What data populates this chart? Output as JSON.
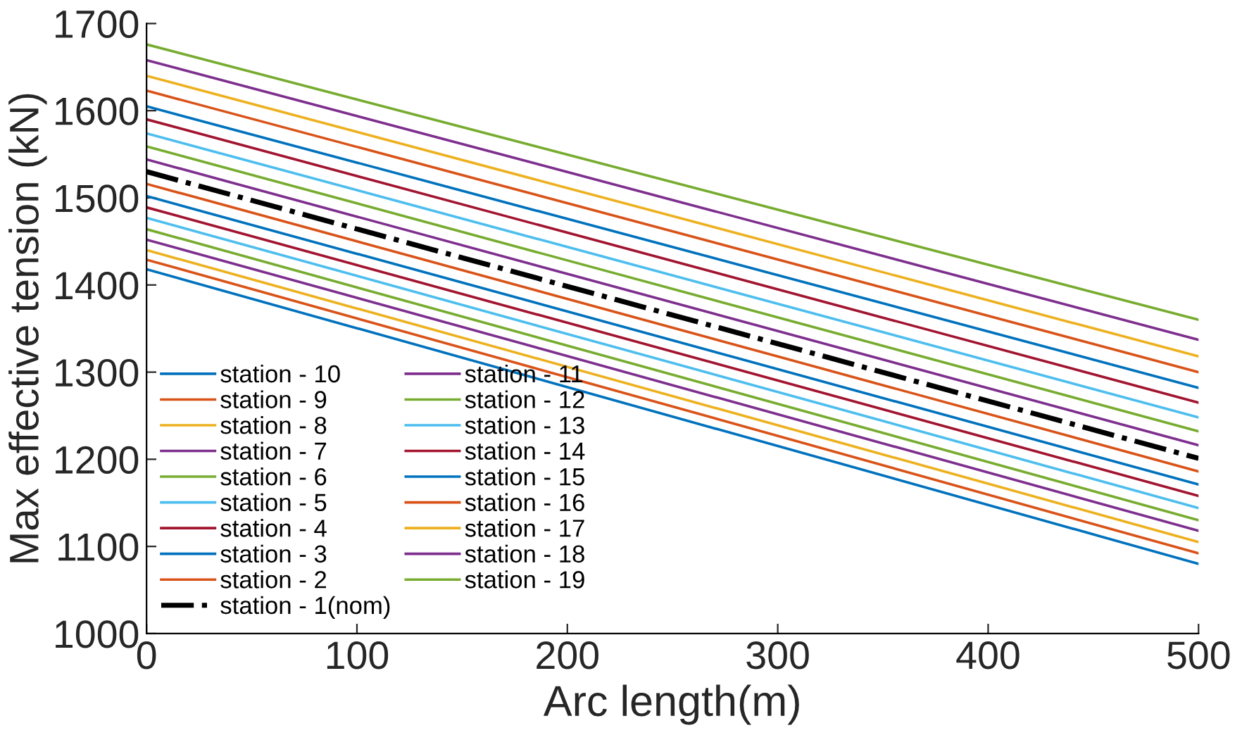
{
  "chart_data": {
    "type": "line",
    "xlabel": "Arc length(m)",
    "ylabel": "Max effective tension (kN)",
    "x": [
      0,
      500
    ],
    "xlim": [
      0,
      500
    ],
    "xticks": [
      0,
      100,
      200,
      300,
      400,
      500
    ],
    "ylim": [
      1000,
      1700
    ],
    "yticks": [
      1000,
      1100,
      1200,
      1300,
      1400,
      1500,
      1600,
      1700
    ],
    "grid": false,
    "legend": "bottom left",
    "line_style": "solid",
    "marker": "none",
    "series": [
      {
        "name": "station - 10",
        "color": "#0072bd",
        "values": [
          1418,
          1080
        ]
      },
      {
        "name": "station - 9",
        "color": "#d95319",
        "values": [
          1429,
          1092
        ]
      },
      {
        "name": "station - 8",
        "color": "#edb120",
        "values": [
          1440,
          1105
        ]
      },
      {
        "name": "station - 7",
        "color": "#7e2f8e",
        "values": [
          1452,
          1118
        ]
      },
      {
        "name": "station - 6",
        "color": "#77ac30",
        "values": [
          1464,
          1130
        ]
      },
      {
        "name": "station - 5",
        "color": "#4dbeee",
        "values": [
          1477,
          1144
        ]
      },
      {
        "name": "station - 4",
        "color": "#a2142f",
        "values": [
          1489,
          1158
        ]
      },
      {
        "name": "station - 3",
        "color": "#0072bd",
        "values": [
          1502,
          1171
        ]
      },
      {
        "name": "station - 2",
        "color": "#d95319",
        "values": [
          1516,
          1186
        ]
      },
      {
        "name": "station - 1(nom)",
        "color": "#000000",
        "line_style": "dashdot",
        "values": [
          1530,
          1201
        ]
      },
      {
        "name": "station - 11",
        "color": "#7e2f8e",
        "values": [
          1544,
          1216
        ]
      },
      {
        "name": "station - 12",
        "color": "#77ac30",
        "values": [
          1559,
          1232
        ]
      },
      {
        "name": "station - 13",
        "color": "#4dbeee",
        "values": [
          1574,
          1248
        ]
      },
      {
        "name": "station - 14",
        "color": "#a2142f",
        "values": [
          1590,
          1265
        ]
      },
      {
        "name": "station - 15",
        "color": "#0072bd",
        "values": [
          1605,
          1282
        ]
      },
      {
        "name": "station - 16",
        "color": "#d95319",
        "values": [
          1623,
          1300
        ]
      },
      {
        "name": "station - 17",
        "color": "#edb120",
        "values": [
          1640,
          1318
        ]
      },
      {
        "name": "station - 18",
        "color": "#7e2f8e",
        "values": [
          1658,
          1337
        ]
      },
      {
        "name": "station - 19",
        "color": "#77ac30",
        "values": [
          1676,
          1360
        ]
      }
    ]
  }
}
